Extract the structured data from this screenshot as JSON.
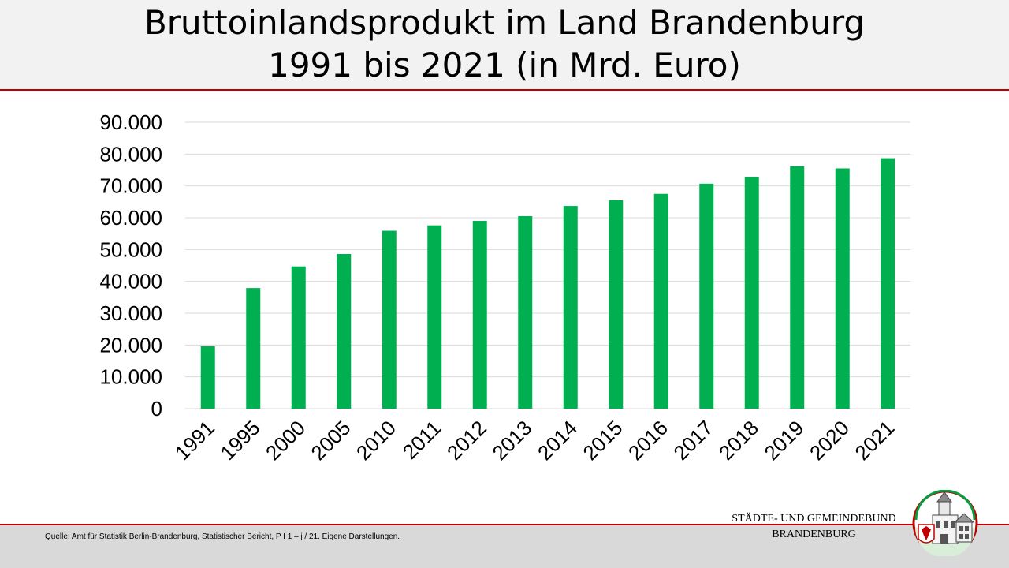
{
  "title": {
    "line1": "Bruttoinlandsprodukt im Land Brandenburg",
    "line2": "1991 bis 2021 (in Mrd. Euro)"
  },
  "footer": {
    "source": "Quelle: Amt für Statistik Berlin-Brandenburg, Statistischer Bericht, P I 1 – j / 21. Eigene Darstellungen.",
    "org_line1": "STÄDTE-  UND GEMEINDEBUND",
    "org_line2": "BRANDENBURG"
  },
  "colors": {
    "bar": "#00b050",
    "header_bg": "#f2f2f2",
    "footer_bg": "#d9d9d9",
    "rule": "#c00000",
    "grid": "#d9d9d9"
  },
  "chart_data": {
    "type": "bar",
    "title": "Bruttoinlandsprodukt im Land Brandenburg 1991 bis 2021 (in Mrd. Euro)",
    "categories": [
      "1991",
      "1995",
      "2000",
      "2005",
      "2010",
      "2011",
      "2012",
      "2013",
      "2014",
      "2015",
      "2016",
      "2017",
      "2018",
      "2019",
      "2020",
      "2021"
    ],
    "values": [
      19600,
      37900,
      44700,
      48600,
      55900,
      57600,
      59000,
      60500,
      63700,
      65500,
      67500,
      70700,
      72900,
      76200,
      75500,
      78700
    ],
    "ylim": [
      0,
      90000
    ],
    "yticks": [
      0,
      10000,
      20000,
      30000,
      40000,
      50000,
      60000,
      70000,
      80000,
      90000
    ],
    "ytick_labels": [
      "0",
      "10.000",
      "20.000",
      "30.000",
      "40.000",
      "50.000",
      "60.000",
      "70.000",
      "80.000",
      "90.000"
    ],
    "grid": true,
    "xlabel": "",
    "ylabel": ""
  }
}
